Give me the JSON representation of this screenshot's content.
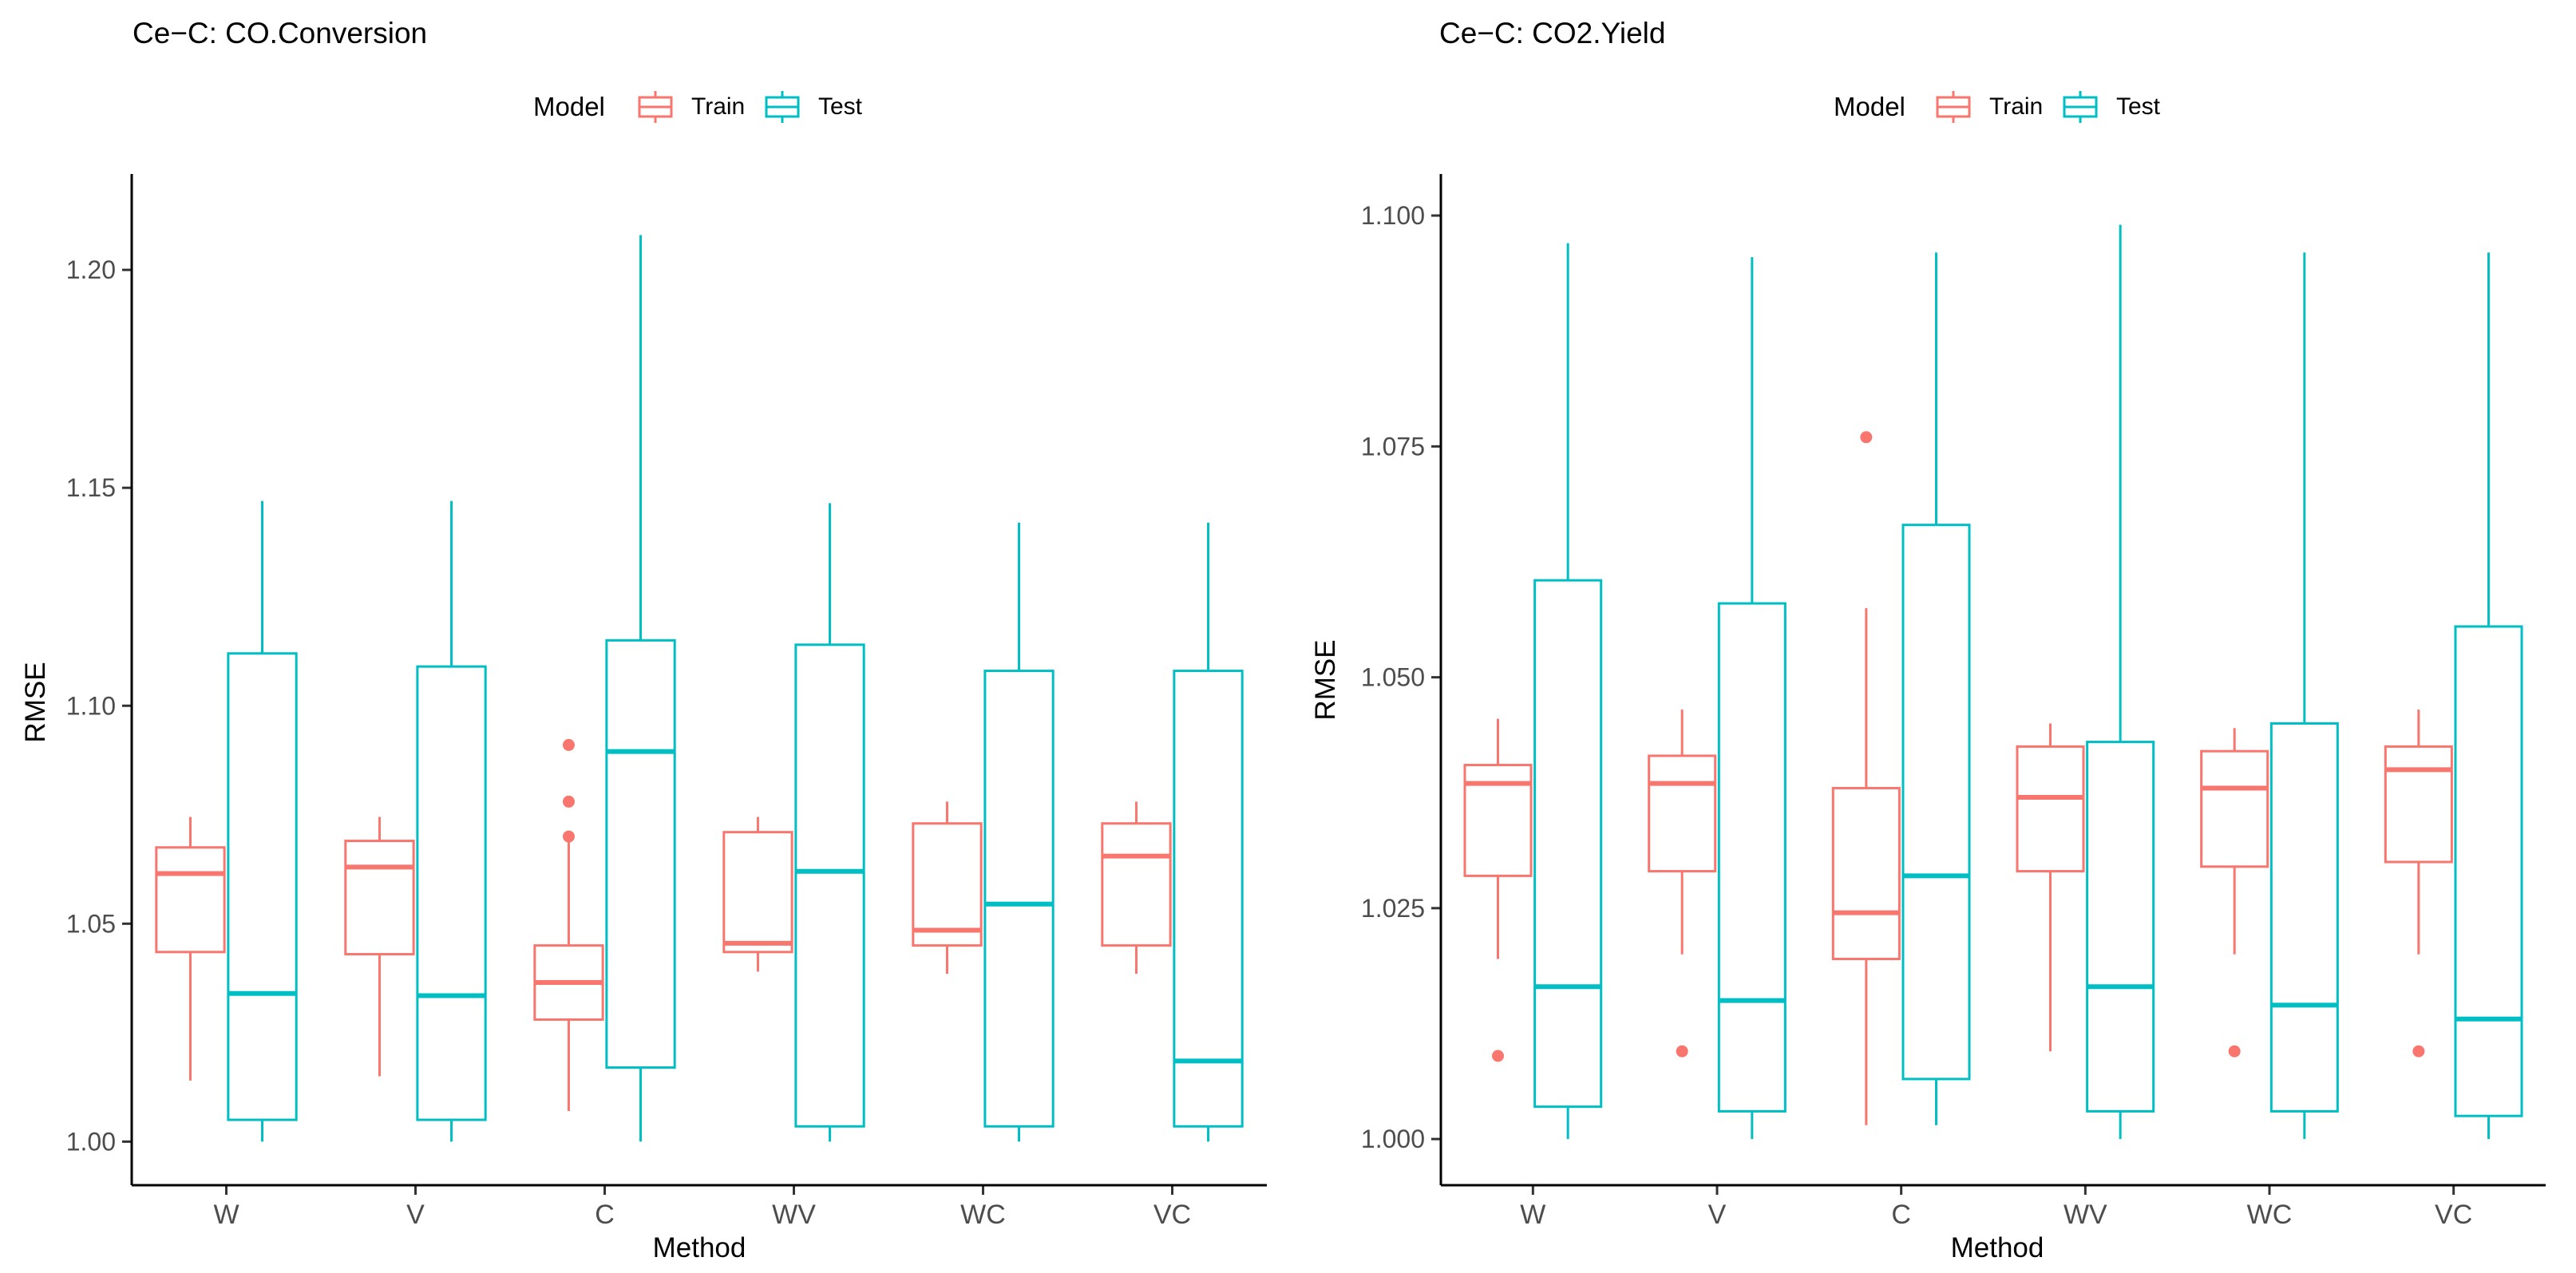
{
  "colors": {
    "train": "#F8766D",
    "test": "#00BFC4",
    "axis": "#000000",
    "text": "#000000"
  },
  "chart_data": [
    {
      "type": "boxplot",
      "title": "Ce−C: CO.Conversion",
      "xlabel": "Method",
      "ylabel": "RMSE",
      "legend": {
        "title": "Model",
        "entries": [
          "Train",
          "Test"
        ],
        "position": "top"
      },
      "categories": [
        "W",
        "V",
        "C",
        "WV",
        "WC",
        "VC"
      ],
      "ylim": [
        0.99,
        1.222
      ],
      "yticks": [
        1.0,
        1.05,
        1.1,
        1.15,
        1.2
      ],
      "ytick_labels": [
        "1.00",
        "1.05",
        "1.10",
        "1.15",
        "1.20"
      ],
      "series": [
        {
          "name": "Train",
          "boxes": [
            {
              "min": 1.014,
              "q1": 1.0435,
              "median": 1.0615,
              "q3": 1.0675,
              "max": 1.0745,
              "outliers": []
            },
            {
              "min": 1.015,
              "q1": 1.043,
              "median": 1.063,
              "q3": 1.069,
              "max": 1.0745,
              "outliers": []
            },
            {
              "min": 1.007,
              "q1": 1.028,
              "median": 1.0365,
              "q3": 1.045,
              "max": 1.069,
              "outliers": [
                1.07,
                1.078,
                1.091
              ]
            },
            {
              "min": 1.039,
              "q1": 1.0435,
              "median": 1.0455,
              "q3": 1.071,
              "max": 1.0745,
              "outliers": []
            },
            {
              "min": 1.0385,
              "q1": 1.045,
              "median": 1.0485,
              "q3": 1.073,
              "max": 1.078,
              "outliers": []
            },
            {
              "min": 1.0385,
              "q1": 1.045,
              "median": 1.0655,
              "q3": 1.073,
              "max": 1.078,
              "outliers": []
            }
          ]
        },
        {
          "name": "Test",
          "boxes": [
            {
              "min": 1.0,
              "q1": 1.005,
              "median": 1.034,
              "q3": 1.112,
              "max": 1.147,
              "outliers": []
            },
            {
              "min": 1.0,
              "q1": 1.005,
              "median": 1.0335,
              "q3": 1.109,
              "max": 1.147,
              "outliers": []
            },
            {
              "min": 1.0,
              "q1": 1.017,
              "median": 1.0895,
              "q3": 1.115,
              "max": 1.208,
              "outliers": []
            },
            {
              "min": 1.0,
              "q1": 1.0035,
              "median": 1.062,
              "q3": 1.114,
              "max": 1.1465,
              "outliers": []
            },
            {
              "min": 1.0,
              "q1": 1.0035,
              "median": 1.0545,
              "q3": 1.108,
              "max": 1.142,
              "outliers": []
            },
            {
              "min": 1.0,
              "q1": 1.0035,
              "median": 1.0185,
              "q3": 1.108,
              "max": 1.142,
              "outliers": []
            }
          ]
        }
      ]
    },
    {
      "type": "boxplot",
      "title": "Ce−C: CO2.Yield",
      "xlabel": "Method",
      "ylabel": "RMSE",
      "legend": {
        "title": "Model",
        "entries": [
          "Train",
          "Test"
        ],
        "position": "top"
      },
      "categories": [
        "W",
        "V",
        "C",
        "WV",
        "WC",
        "VC"
      ],
      "ylim": [
        0.995,
        1.1045
      ],
      "yticks": [
        1.0,
        1.025,
        1.05,
        1.075,
        1.1
      ],
      "ytick_labels": [
        "1.000",
        "1.025",
        "1.050",
        "1.075",
        "1.100"
      ],
      "series": [
        {
          "name": "Train",
          "boxes": [
            {
              "min": 1.0195,
              "q1": 1.0285,
              "median": 1.0385,
              "q3": 1.0405,
              "max": 1.0455,
              "outliers": [
                1.009
              ]
            },
            {
              "min": 1.02,
              "q1": 1.029,
              "median": 1.0385,
              "q3": 1.0415,
              "max": 1.0465,
              "outliers": [
                1.0095
              ]
            },
            {
              "min": 1.0015,
              "q1": 1.0195,
              "median": 1.0245,
              "q3": 1.038,
              "max": 1.0575,
              "outliers": [
                1.076
              ]
            },
            {
              "min": 1.0095,
              "q1": 1.029,
              "median": 1.037,
              "q3": 1.0425,
              "max": 1.045,
              "outliers": []
            },
            {
              "min": 1.02,
              "q1": 1.0295,
              "median": 1.038,
              "q3": 1.042,
              "max": 1.0445,
              "outliers": [
                1.0095
              ]
            },
            {
              "min": 1.02,
              "q1": 1.03,
              "median": 1.04,
              "q3": 1.0425,
              "max": 1.0465,
              "outliers": [
                1.0095
              ]
            }
          ]
        },
        {
          "name": "Test",
          "boxes": [
            {
              "min": 1.0,
              "q1": 1.0035,
              "median": 1.0165,
              "q3": 1.0605,
              "max": 1.097,
              "outliers": []
            },
            {
              "min": 1.0,
              "q1": 1.003,
              "median": 1.015,
              "q3": 1.058,
              "max": 1.0955,
              "outliers": []
            },
            {
              "min": 1.0015,
              "q1": 1.0065,
              "median": 1.0285,
              "q3": 1.0665,
              "max": 1.096,
              "outliers": []
            },
            {
              "min": 1.0,
              "q1": 1.003,
              "median": 1.0165,
              "q3": 1.043,
              "max": 1.099,
              "outliers": []
            },
            {
              "min": 1.0,
              "q1": 1.003,
              "median": 1.0145,
              "q3": 1.045,
              "max": 1.096,
              "outliers": []
            },
            {
              "min": 1.0,
              "q1": 1.0025,
              "median": 1.013,
              "q3": 1.0555,
              "max": 1.096,
              "outliers": []
            }
          ]
        }
      ]
    }
  ]
}
